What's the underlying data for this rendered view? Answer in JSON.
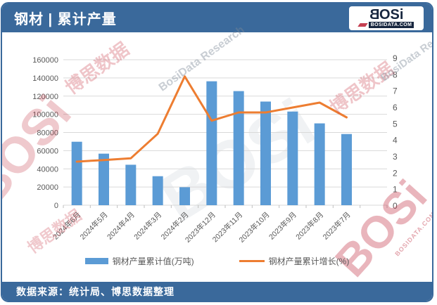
{
  "header": {
    "title": "钢材 | 累计产量",
    "logo": {
      "wordmark_b": "B",
      "wordmark_osi": "OSi",
      "domain": "BOSIDATA.COM"
    }
  },
  "footer": {
    "source": "数据来源：统计局、博思数据整理"
  },
  "watermarks": {
    "bosi": "BOSi",
    "cn": "博思数据",
    "en": "BosiData Research",
    "domain": "BOSIDATA.COM"
  },
  "colors": {
    "header_bg": "#3A699B",
    "footer_bg": "#3A699B",
    "bar": "#5B9BD5",
    "line": "#ED7D31",
    "grid": "#D9D9D9",
    "tick": "#BFBFBF",
    "axis_text": "#595959",
    "logo_navy": "#17263F",
    "logo_red": "#C53F51"
  },
  "chart_data": {
    "type": "bar",
    "title": "钢材 | 累计产量",
    "categories": [
      "2024年6月",
      "2024年5月",
      "2024年4月",
      "2024年3月",
      "2024年2月",
      "2023年12月",
      "2023年11月",
      "2023年10月",
      "2023年9月",
      "2023年8月",
      "2023年7月"
    ],
    "series": [
      {
        "name": "钢材产量累计值(万吨)",
        "type": "bar",
        "axis": "left",
        "color": "#5B9BD5",
        "values": [
          69800,
          56700,
          44500,
          31900,
          19800,
          136300,
          125500,
          114000,
          103000,
          90000,
          78300
        ]
      },
      {
        "name": "钢材产量累计增长(%)",
        "type": "line",
        "axis": "right",
        "color": "#ED7D31",
        "values": [
          2.7,
          2.8,
          2.9,
          4.4,
          7.9,
          5.2,
          5.7,
          5.7,
          6.0,
          6.3,
          5.4
        ]
      }
    ],
    "left_axis": {
      "min": 0,
      "max": 160000,
      "step": 20000,
      "unit": "万吨"
    },
    "right_axis": {
      "min": 0,
      "max": 9,
      "step": 1,
      "unit": "%"
    },
    "grid": true,
    "legend_position": "bottom"
  }
}
